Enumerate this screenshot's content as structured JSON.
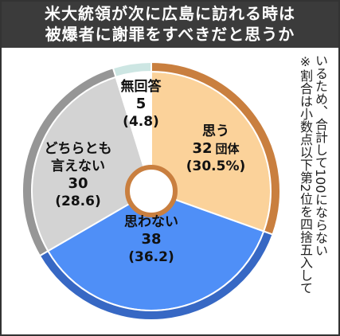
{
  "title": {
    "line1": "米大統領が次に広島に訪れる時は",
    "line2": "被爆者に謝罪をすべきだと思うか"
  },
  "note": {
    "col1": "※割合は小数点以下第2位を四捨五入して",
    "col2": "いるため、合計して100にならない"
  },
  "chart_data": {
    "type": "pie",
    "title": "米大統領が次に広島に訪れる時は被爆者に謝罪をすべきだと思うか",
    "unit": "団体",
    "slices": [
      {
        "label": "思う",
        "value": 32,
        "value_text": "32",
        "unit_text": "団体",
        "percent": 30.5,
        "percent_text": "(30.5%)",
        "fill": "#fbd29a",
        "ring": "#c97f3f"
      },
      {
        "label": "思わない",
        "value": 38,
        "value_text": "38",
        "unit_text": "",
        "percent": 36.2,
        "percent_text": "(36.2)",
        "fill": "#4f8ff7",
        "ring": "#3768c4"
      },
      {
        "label": "どちらとも言えない",
        "label_lines": [
          "どちらとも",
          "言えない"
        ],
        "value": 30,
        "value_text": "30",
        "unit_text": "",
        "percent": 28.6,
        "percent_text": "(28.6)",
        "fill": "#d3d3d3",
        "ring": "#969696"
      },
      {
        "label": "無回答",
        "value": 5,
        "value_text": "5",
        "unit_text": "",
        "percent": 4.8,
        "percent_text": "(4.8)",
        "fill": "#ffffff",
        "ring": "#cde6e3"
      }
    ]
  }
}
